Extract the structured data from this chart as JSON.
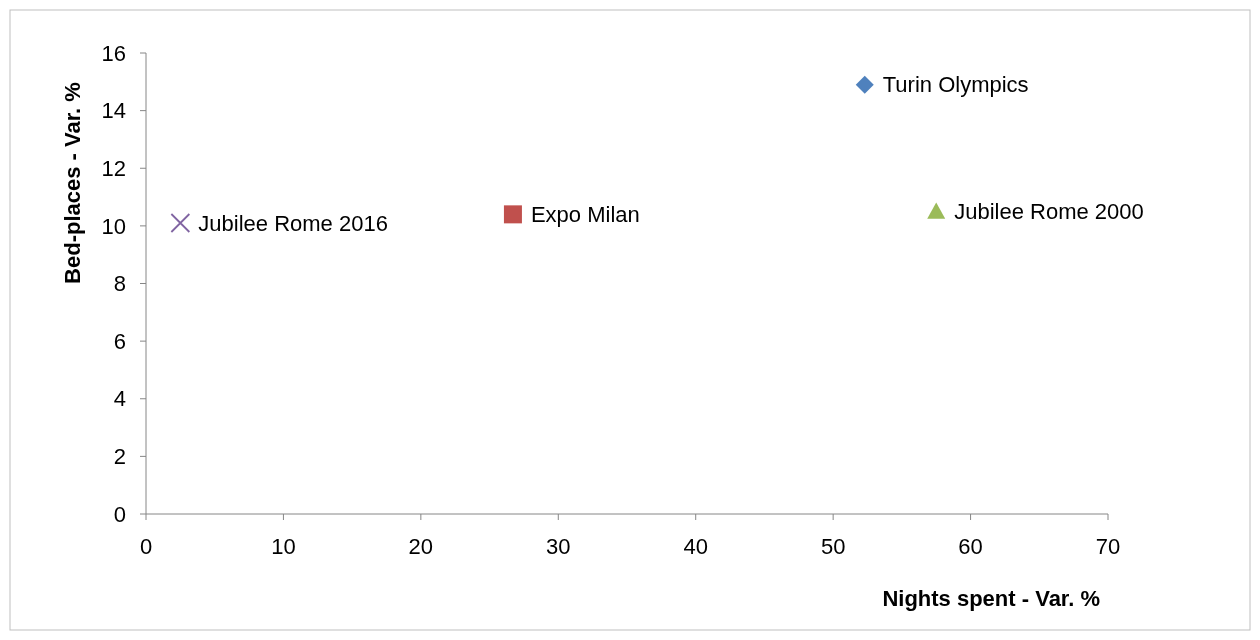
{
  "chart_data": {
    "type": "scatter",
    "xlabel": "Nights spent - Var. %",
    "ylabel": "Bed-places - Var. %",
    "xlim": [
      0,
      70
    ],
    "xticks": [
      0,
      10,
      20,
      30,
      40,
      50,
      60,
      70
    ],
    "ylim": [
      0,
      16
    ],
    "yticks": [
      0,
      2,
      4,
      6,
      8,
      10,
      12,
      14,
      16
    ],
    "grid": false,
    "series": [
      {
        "name": "Turin Olympics",
        "color": "#4f81bd",
        "marker": "diamond",
        "x": [
          52.3
        ],
        "values": [
          14.9
        ]
      },
      {
        "name": "Jubilee Rome 2000",
        "color": "#9bbb59",
        "marker": "triangle",
        "x": [
          57.5
        ],
        "values": [
          10.5
        ]
      },
      {
        "name": "Expo Milan",
        "color": "#c0504d",
        "marker": "square",
        "x": [
          26.7
        ],
        "values": [
          10.4
        ]
      },
      {
        "name": "Jubilee Rome 2016",
        "color": "#8064a2",
        "marker": "cross",
        "x": [
          2.5
        ],
        "values": [
          10.1
        ]
      }
    ]
  }
}
